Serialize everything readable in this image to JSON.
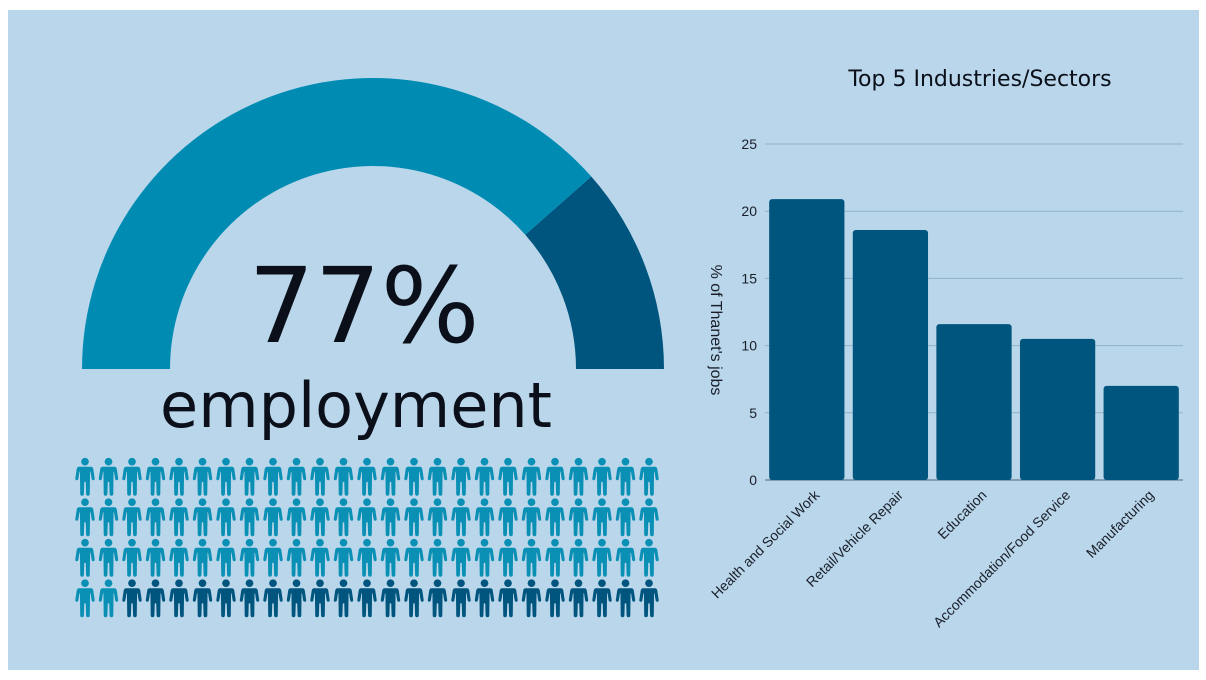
{
  "colors": {
    "background": "#b9d6ea",
    "gauge_filled": "#008bb3",
    "gauge_empty": "#00557e",
    "person_employed": "#0a8fb5",
    "person_unemployed": "#00557e",
    "bar": "#00557e",
    "grid": "#8fb2c8"
  },
  "gauge": {
    "value_label": "77%",
    "caption": "employment",
    "fraction": 0.77
  },
  "people": {
    "rows": 4,
    "cols": 25,
    "employed_count": 77,
    "total": 100,
    "icon": "person-icon"
  },
  "chart_data": {
    "type": "bar",
    "title": "Top 5 Industries/Sectors",
    "ylabel": "% of Thanet's jobs",
    "xlabel": "",
    "categories": [
      "Health and Social Work",
      "Retail/Vehicle Repair",
      "Education",
      "Accommodation/Food Service",
      "Manufacturing"
    ],
    "values": [
      20.9,
      18.6,
      11.6,
      10.5,
      7.0
    ],
    "ylim": [
      0,
      25
    ],
    "yticks": [
      0,
      5,
      10,
      15,
      20,
      25
    ],
    "grid": true
  }
}
